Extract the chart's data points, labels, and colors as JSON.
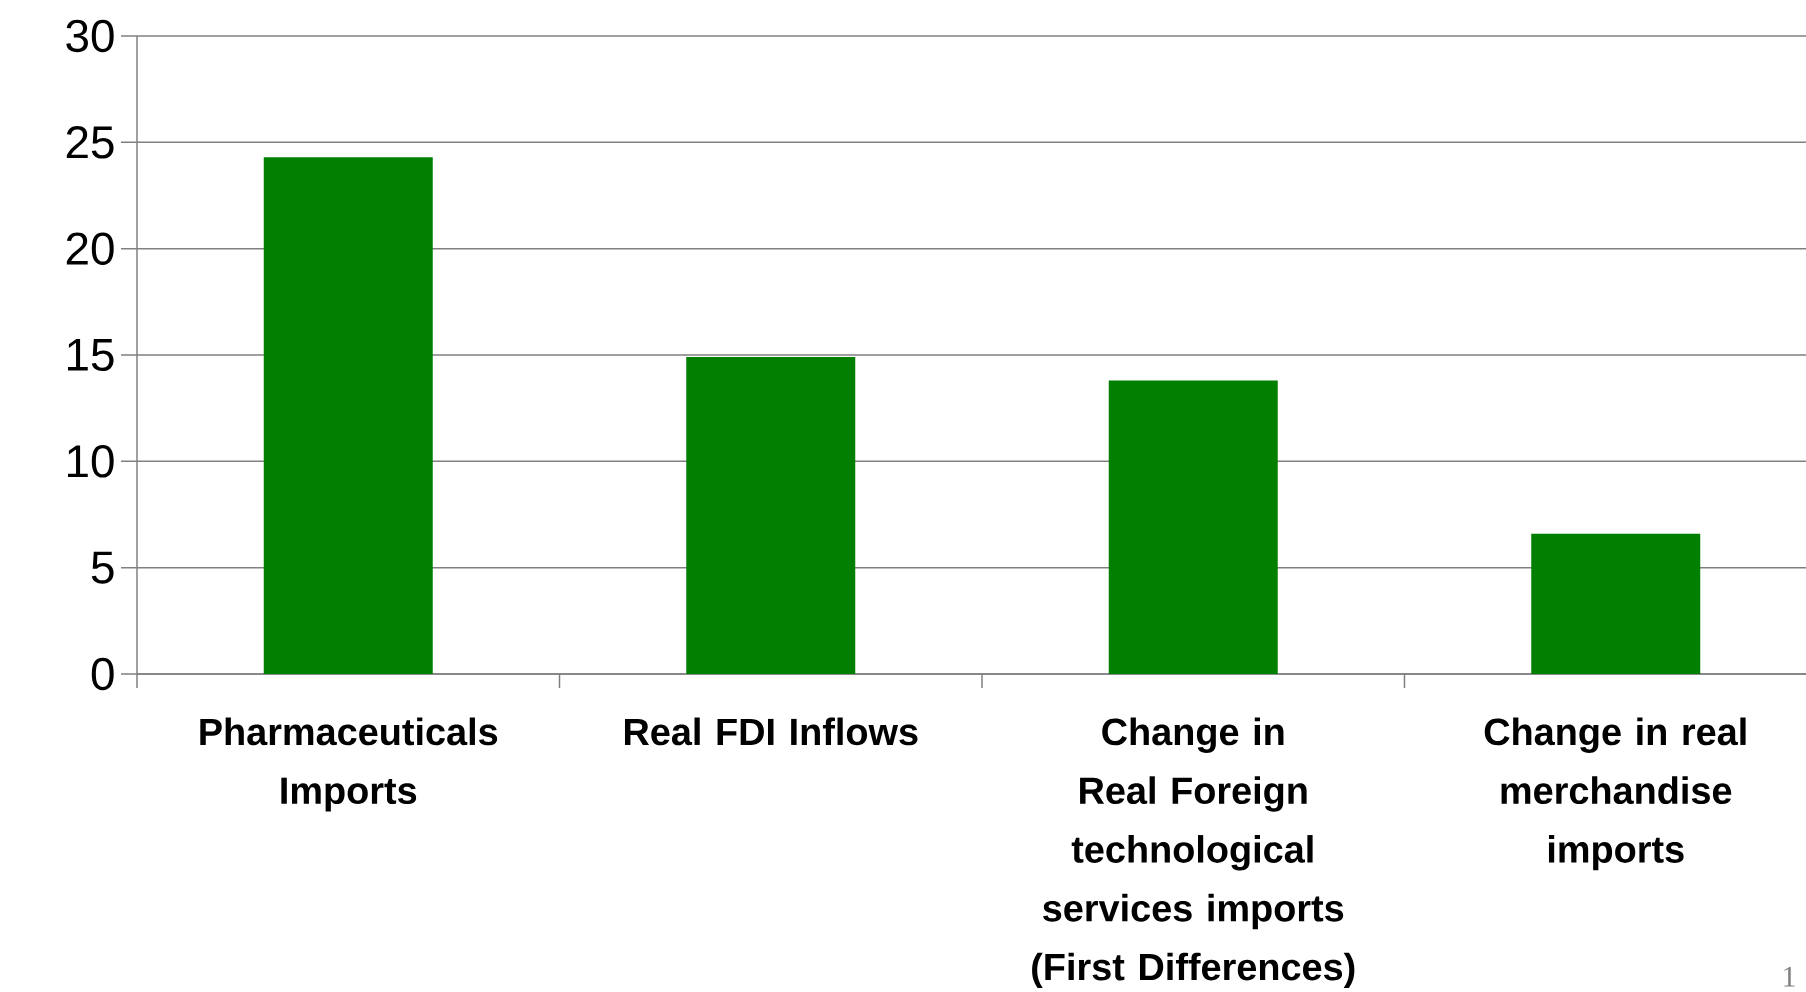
{
  "chart_data": {
    "type": "bar",
    "categories": [
      "Pharmaceuticals Imports",
      "Real FDI Inflows",
      "Change in Real Foreign technological services imports (First Differences)",
      "Change in real merchandise imports"
    ],
    "values": [
      24.3,
      14.9,
      13.8,
      6.6
    ],
    "color": "#007f00",
    "ylim": [
      0,
      30
    ],
    "yticks": [
      0,
      5,
      10,
      15,
      20,
      25,
      30
    ],
    "grid": "y",
    "annotations": [
      "1"
    ]
  }
}
